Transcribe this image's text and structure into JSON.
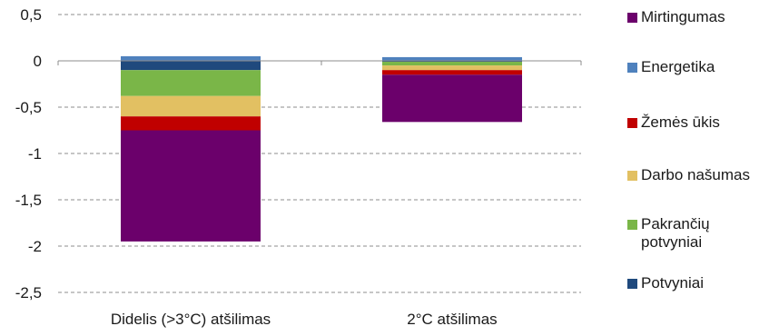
{
  "chart_data": {
    "type": "bar",
    "stacked": true,
    "categories": [
      "Didelis (>3°C) atšilimas",
      "2°C atšilimas"
    ],
    "ylim": [
      -2.5,
      0.5
    ],
    "yticks": [
      0.5,
      0,
      -0.5,
      -1,
      -1.5,
      -2,
      -2.5
    ],
    "ytick_labels": [
      "0,5",
      "0",
      "-0,5",
      "-1",
      "-1,5",
      "-2",
      "-2,5"
    ],
    "grid": true,
    "legend_position": "right",
    "series": [
      {
        "name": "Potvyniai",
        "color": "#1f497d",
        "values": [
          -0.1,
          -0.01
        ]
      },
      {
        "name": "Pakrančių potvyniai",
        "color": "#7ab648",
        "values": [
          -0.28,
          -0.04
        ]
      },
      {
        "name": "Darbo našumas",
        "color": "#e2c062",
        "values": [
          -0.22,
          -0.05
        ]
      },
      {
        "name": "Žemės ūkis",
        "color": "#c00000",
        "values": [
          -0.15,
          -0.05
        ]
      },
      {
        "name": "Mirtingumas",
        "color": "#6b006b",
        "values": [
          -1.2,
          -0.51
        ]
      },
      {
        "name": "Energetika",
        "color": "#4f81bd",
        "values": [
          0.05,
          0.04
        ]
      }
    ],
    "legend_order": [
      "Mirtingumas",
      "Energetika",
      "Žemės ūkis",
      "Darbo našumas",
      "Pakrančių potvyniai",
      "Potvyniai"
    ]
  }
}
